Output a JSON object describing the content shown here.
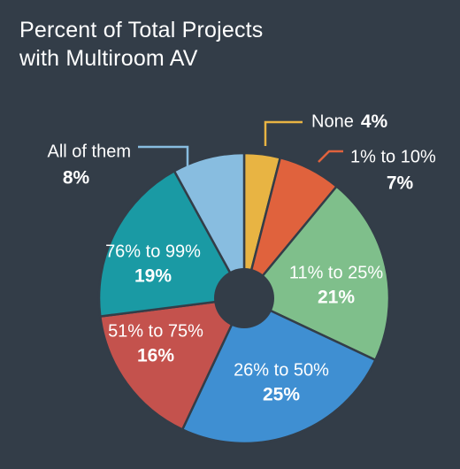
{
  "chart_data": {
    "type": "pie",
    "title_lines": [
      "Percent of Total Projects",
      "with Multiroom AV"
    ],
    "slices": [
      {
        "label": "None",
        "value": 4,
        "value_text": "4%",
        "color": "#e8b443"
      },
      {
        "label": "1% to 10%",
        "value": 7,
        "value_text": "7%",
        "color": "#e0623d"
      },
      {
        "label": "11% to 25%",
        "value": 21,
        "value_text": "21%",
        "color": "#7fbf8b"
      },
      {
        "label": "26% to 50%",
        "value": 25,
        "value_text": "25%",
        "color": "#3f8fd2"
      },
      {
        "label": "51% to 75%",
        "value": 16,
        "value_text": "16%",
        "color": "#c4524d"
      },
      {
        "label": "76% to 99%",
        "value": 19,
        "value_text": "19%",
        "color": "#1a9aa4"
      },
      {
        "label": "All of them",
        "value": 8,
        "value_text": "8%",
        "color": "#88bde0"
      }
    ],
    "legend": "none"
  }
}
